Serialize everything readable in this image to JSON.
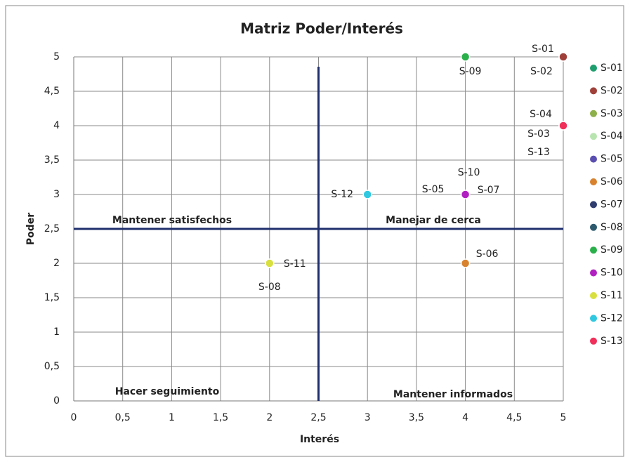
{
  "chart_data": {
    "type": "scatter",
    "title": "Matriz Poder/Interés",
    "x_label": "Interés",
    "y_label": "Poder",
    "xlim": [
      0,
      5
    ],
    "ylim": [
      0,
      5
    ],
    "xticks": [
      0,
      {
        "value": 0.5,
        "label": "0,5"
      },
      1,
      {
        "value": 1.5,
        "label": "1,5"
      },
      2,
      {
        "value": 2.5,
        "label": "2,5"
      },
      3,
      {
        "value": 3.5,
        "label": "3,5"
      },
      4,
      {
        "value": 4.5,
        "label": "4,5"
      },
      5
    ],
    "yticks": [
      0,
      {
        "value": 0.5,
        "label": "0,5"
      },
      1,
      {
        "value": 1.5,
        "label": "1,5"
      },
      2,
      {
        "value": 2.5,
        "label": "2,5"
      },
      3,
      {
        "value": 3.5,
        "label": "3,5"
      },
      4,
      {
        "value": 4.5,
        "label": "4,5"
      },
      5
    ],
    "grid": true,
    "legend": "right",
    "dividers": {
      "x": 2.5,
      "y": 2.5,
      "color": "#1f2f6e"
    },
    "annotations": [
      "Mantener satisfechos",
      "Manejar de cerca",
      "Hacer seguimiento",
      "Mantener informados"
    ],
    "series": [
      {
        "name": "S-01",
        "color": "#1e9e6e",
        "x": [
          5
        ],
        "values": [
          5
        ]
      },
      {
        "name": "S-02",
        "color": "#a0403a",
        "x": [
          5
        ],
        "values": [
          5
        ]
      },
      {
        "name": "S-03",
        "color": "#8db04a",
        "x": [
          5
        ],
        "values": [
          4
        ]
      },
      {
        "name": "S-04",
        "color": "#b8e4b0",
        "x": [
          5
        ],
        "values": [
          4
        ]
      },
      {
        "name": "S-05",
        "color": "#5a4fb0",
        "x": [
          4
        ],
        "values": [
          3
        ]
      },
      {
        "name": "S-06",
        "color": "#d8822e",
        "x": [
          4
        ],
        "values": [
          2
        ]
      },
      {
        "name": "S-07",
        "color": "#2e3c6e",
        "x": [
          4
        ],
        "values": [
          3
        ]
      },
      {
        "name": "S-08",
        "color": "#2e5a6e",
        "x": [
          2
        ],
        "values": [
          2
        ]
      },
      {
        "name": "S-09",
        "color": "#2ab04a",
        "x": [
          4
        ],
        "values": [
          5
        ]
      },
      {
        "name": "S-10",
        "color": "#b020c0",
        "x": [
          4
        ],
        "values": [
          3
        ]
      },
      {
        "name": "S-11",
        "color": "#d8e040",
        "x": [
          2
        ],
        "values": [
          2
        ]
      },
      {
        "name": "S-12",
        "color": "#30c8e0",
        "x": [
          3
        ],
        "values": [
          3
        ]
      },
      {
        "name": "S-13",
        "color": "#f0305a",
        "x": [
          5
        ],
        "values": [
          4
        ]
      }
    ]
  }
}
